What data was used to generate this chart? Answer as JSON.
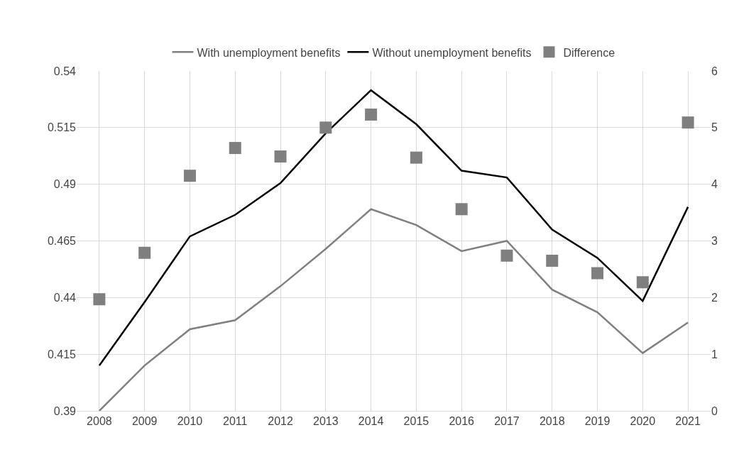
{
  "chart_data": {
    "type": "line",
    "categories": [
      "2008",
      "2009",
      "2010",
      "2011",
      "2012",
      "2013",
      "2014",
      "2015",
      "2016",
      "2017",
      "2018",
      "2019",
      "2020",
      "2021"
    ],
    "series": [
      {
        "name": "With unemployment benefits",
        "color": "#808080",
        "values": [
          0.39,
          0.41,
          0.426,
          0.43,
          0.445,
          0.4615,
          0.479,
          0.472,
          0.4605,
          0.465,
          0.4435,
          0.4335,
          0.4155,
          0.429
        ]
      },
      {
        "name": "Without unemployment benefits",
        "color": "#000000",
        "values": [
          0.41,
          0.438,
          0.467,
          0.4765,
          0.4905,
          0.5125,
          0.5315,
          0.5165,
          0.496,
          0.493,
          0.47,
          0.4575,
          0.4385,
          0.48
        ]
      },
      {
        "name": "Difference",
        "type": "scatter",
        "marker": "square",
        "axis": "y2",
        "color": "#7f7f7f",
        "values": [
          1.97,
          2.79,
          4.15,
          4.64,
          4.49,
          5.0,
          5.23,
          4.47,
          3.56,
          2.74,
          2.65,
          2.43,
          2.27,
          5.09
        ]
      }
    ],
    "ylim": [
      0.39,
      0.54
    ],
    "yticks": [
      0.39,
      0.415,
      0.44,
      0.465,
      0.49,
      0.515,
      0.54
    ],
    "y2lim": [
      0,
      6
    ],
    "y2ticks": [
      0,
      1,
      2,
      3,
      4,
      5,
      6
    ],
    "grid": true,
    "legend": "top",
    "marker": "none",
    "line_style": "solid"
  }
}
